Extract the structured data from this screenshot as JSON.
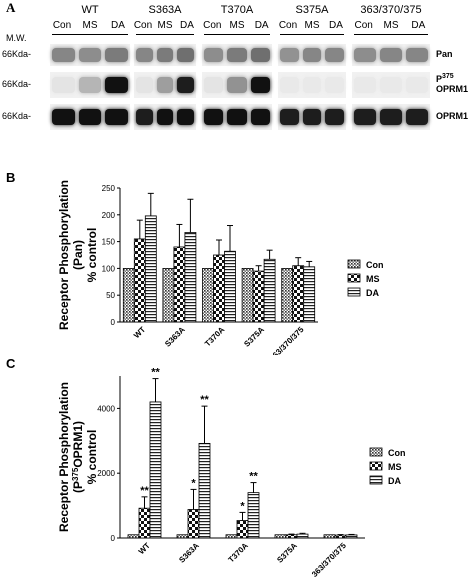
{
  "panel_a": {
    "letter": "A",
    "mw_label": "M.W.",
    "groups": [
      "WT",
      "S363A",
      "T370A",
      "S375A",
      "363/370/375"
    ],
    "lanes": [
      "Con",
      "MS",
      "DA"
    ],
    "rows": [
      {
        "marker": "66Kda-",
        "label": "Pan",
        "intensity": [
          [
            0.45,
            0.42,
            0.5
          ],
          [
            0.45,
            0.5,
            0.55
          ],
          [
            0.42,
            0.5,
            0.55
          ],
          [
            0.4,
            0.45,
            0.45
          ],
          [
            0.42,
            0.45,
            0.45
          ]
        ]
      },
      {
        "marker": "66Kda-",
        "label_sup": "375",
        "label_prefix": "P",
        "label_main": "OPRM1",
        "intensity": [
          [
            0.05,
            0.25,
            0.95
          ],
          [
            0.05,
            0.35,
            0.9
          ],
          [
            0.05,
            0.4,
            0.95
          ],
          [
            0.03,
            0.03,
            0.03
          ],
          [
            0.03,
            0.03,
            0.03
          ]
        ]
      },
      {
        "marker": "66Kda-",
        "label": "OPRM1",
        "intensity": [
          [
            0.95,
            0.95,
            0.95
          ],
          [
            0.9,
            0.95,
            0.95
          ],
          [
            0.95,
            0.95,
            0.95
          ],
          [
            0.9,
            0.9,
            0.9
          ],
          [
            0.9,
            0.9,
            0.9
          ]
        ]
      }
    ]
  },
  "chart_data": [
    {
      "type": "bar",
      "panel": "B",
      "categories": [
        "WT",
        "S363A",
        "T370A",
        "S375A",
        "363/370/375"
      ],
      "series": [
        {
          "name": "Con",
          "values": [
            100,
            100,
            100,
            100,
            100
          ],
          "errors": [
            0,
            0,
            0,
            0,
            0
          ]
        },
        {
          "name": "MS",
          "values": [
            155,
            140,
            125,
            95,
            105
          ],
          "errors": [
            35,
            42,
            28,
            10,
            15
          ]
        },
        {
          "name": "DA",
          "values": [
            198,
            167,
            132,
            117,
            103
          ],
          "errors": [
            42,
            62,
            48,
            17,
            10
          ]
        }
      ],
      "ylabel_lines": [
        "Receptor Phosphorylation",
        "(Pan)",
        "% control"
      ],
      "ylim": [
        0,
        250
      ],
      "yticks": [
        0,
        50,
        100,
        150,
        200,
        250
      ],
      "legend": "right",
      "significance": []
    },
    {
      "type": "bar",
      "panel": "C",
      "categories": [
        "WT",
        "S363A",
        "T370A",
        "S375A",
        "363/370/375"
      ],
      "series": [
        {
          "name": "Con",
          "values": [
            100,
            100,
            100,
            100,
            100
          ],
          "errors": [
            0,
            0,
            0,
            0,
            0
          ]
        },
        {
          "name": "MS",
          "values": [
            920,
            880,
            540,
            100,
            90
          ],
          "errors": [
            350,
            620,
            250,
            20,
            15
          ]
        },
        {
          "name": "DA",
          "values": [
            4200,
            2920,
            1400,
            120,
            95
          ],
          "errors": [
            720,
            1150,
            310,
            25,
            15
          ]
        }
      ],
      "ylabel_lines": [
        "Receptor Phosphorylation",
        "(P375OPRM1)",
        "% control"
      ],
      "ylim": [
        0,
        5000
      ],
      "yticks": [
        0,
        2000,
        4000
      ],
      "legend": "right",
      "significance": [
        {
          "category": 0,
          "series": 1,
          "mark": "**"
        },
        {
          "category": 0,
          "series": 2,
          "mark": "**"
        },
        {
          "category": 1,
          "series": 1,
          "mark": "*"
        },
        {
          "category": 1,
          "series": 2,
          "mark": "**"
        },
        {
          "category": 2,
          "series": 1,
          "mark": "*"
        },
        {
          "category": 2,
          "series": 2,
          "mark": "**"
        }
      ]
    }
  ]
}
